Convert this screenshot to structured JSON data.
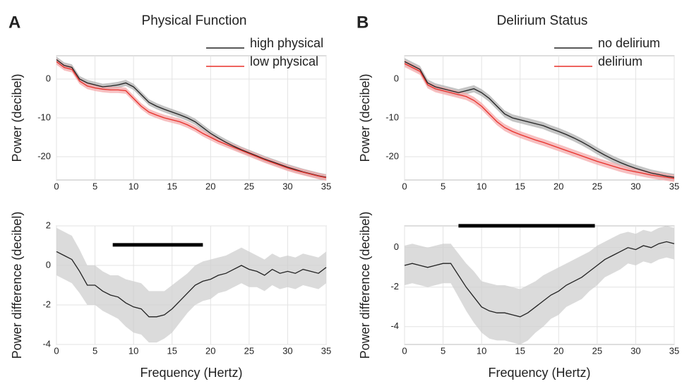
{
  "chart_data": [
    {
      "type": "line",
      "panel_label": "A",
      "title": "Physical Function",
      "ylabel": "Power (decibel)",
      "x": [
        0,
        1,
        2,
        3,
        4,
        5,
        6,
        7,
        8,
        9,
        10,
        11,
        12,
        13,
        14,
        15,
        16,
        17,
        18,
        19,
        20,
        21,
        22,
        23,
        24,
        25,
        26,
        27,
        28,
        29,
        30,
        31,
        32,
        33,
        34,
        35
      ],
      "series": [
        {
          "name": "high physical",
          "color": "#222222",
          "band_color": "#b0b0b0",
          "values": [
            5,
            3.5,
            3,
            0,
            -1,
            -1.5,
            -2,
            -1.8,
            -1.5,
            -1,
            -2,
            -4,
            -6,
            -7,
            -7.8,
            -8.5,
            -9.2,
            -10,
            -11,
            -12.5,
            -14,
            -15.2,
            -16.3,
            -17.3,
            -18.2,
            -19,
            -19.8,
            -20.6,
            -21.3,
            -22,
            -22.7,
            -23.3,
            -23.9,
            -24.4,
            -24.9,
            -25.3
          ],
          "errors": [
            0.8,
            0.8,
            0.8,
            0.8,
            0.8,
            0.8,
            0.8,
            0.8,
            0.8,
            0.8,
            0.8,
            0.8,
            0.8,
            0.8,
            0.8,
            0.8,
            0.8,
            0.8,
            0.8,
            0.8,
            0.8,
            0.8,
            0.8,
            0.8,
            0.8,
            0.8,
            0.8,
            0.8,
            0.8,
            0.8,
            0.8,
            0.8,
            0.8,
            0.8,
            0.8,
            0.8
          ]
        },
        {
          "name": "low physical",
          "color": "#e8302a",
          "band_color": "#f4a9ab",
          "values": [
            4.5,
            3,
            2.5,
            -0.5,
            -1.8,
            -2.3,
            -2.6,
            -2.8,
            -2.8,
            -3,
            -5,
            -7,
            -8.5,
            -9.3,
            -10,
            -10.5,
            -11,
            -11.8,
            -12.8,
            -14,
            -15,
            -16,
            -16.8,
            -17.6,
            -18.4,
            -19.2,
            -20,
            -20.8,
            -21.5,
            -22.2,
            -22.9,
            -23.5,
            -24,
            -24.5,
            -25,
            -25.4
          ],
          "errors": [
            0.8,
            0.8,
            0.8,
            0.8,
            0.8,
            0.8,
            0.8,
            0.8,
            0.8,
            0.8,
            0.8,
            0.8,
            0.8,
            0.8,
            0.8,
            0.8,
            0.8,
            0.8,
            0.8,
            0.8,
            0.8,
            0.8,
            0.8,
            0.8,
            0.8,
            0.8,
            0.8,
            0.8,
            0.8,
            0.8,
            0.8,
            0.8,
            0.8,
            0.8,
            0.8,
            0.8
          ]
        }
      ],
      "xlim": [
        0,
        35
      ],
      "xticks": [
        0,
        5,
        10,
        15,
        20,
        25,
        30,
        35
      ],
      "ylim": [
        -26,
        6
      ],
      "yticks": [
        -20,
        -10,
        0
      ],
      "grid": true,
      "legend": "upper right"
    },
    {
      "type": "line",
      "xlabel": "Frequency (Hertz)",
      "ylabel": "Power difference (decibel)",
      "x": [
        0,
        1,
        2,
        3,
        4,
        5,
        6,
        7,
        8,
        9,
        10,
        11,
        12,
        13,
        14,
        15,
        16,
        17,
        18,
        19,
        20,
        21,
        22,
        23,
        24,
        25,
        26,
        27,
        28,
        29,
        30,
        31,
        32,
        33,
        34,
        35
      ],
      "series": [
        {
          "color": "#222222",
          "band_color": "#cfcfcf",
          "values": [
            0.7,
            0.5,
            0.3,
            -0.3,
            -1,
            -1,
            -1.3,
            -1.5,
            -1.6,
            -1.9,
            -2.1,
            -2.2,
            -2.6,
            -2.6,
            -2.5,
            -2.2,
            -1.8,
            -1.4,
            -1,
            -0.8,
            -0.7,
            -0.5,
            -0.4,
            -0.2,
            0,
            -0.2,
            -0.3,
            -0.5,
            -0.2,
            -0.4,
            -0.3,
            -0.4,
            -0.2,
            -0.3,
            -0.4,
            -0.1
          ],
          "errors": [
            1.2,
            1.2,
            1.2,
            1.1,
            1,
            1,
            1,
            1,
            1.1,
            1.2,
            1.3,
            1.3,
            1.3,
            1.3,
            1.2,
            1.2,
            1.1,
            1,
            1,
            1,
            1,
            0.9,
            0.9,
            0.9,
            0.9,
            0.9,
            0.8,
            0.8,
            0.8,
            0.8,
            0.8,
            0.8,
            0.8,
            0.8,
            0.8,
            0.8
          ]
        }
      ],
      "significance": [
        7.3,
        19
      ],
      "xlim": [
        0,
        35
      ],
      "xticks": [
        0,
        5,
        10,
        15,
        20,
        25,
        30,
        35
      ],
      "ylim": [
        -4,
        2
      ],
      "yticks": [
        -4,
        -2,
        0,
        2
      ],
      "grid": true
    },
    {
      "type": "line",
      "panel_label": "B",
      "title": "Delirium  Status",
      "ylabel": "Power (decibel)",
      "x": [
        0,
        1,
        2,
        3,
        4,
        5,
        6,
        7,
        8,
        9,
        10,
        11,
        12,
        13,
        14,
        15,
        16,
        17,
        18,
        19,
        20,
        21,
        22,
        23,
        24,
        25,
        26,
        27,
        28,
        29,
        30,
        31,
        32,
        33,
        34,
        35
      ],
      "series": [
        {
          "name": "no delirium",
          "color": "#222222",
          "band_color": "#b0b0b0",
          "values": [
            4.5,
            3.5,
            2.5,
            -1,
            -2,
            -2.5,
            -3,
            -3.5,
            -3,
            -2.5,
            -3.5,
            -5,
            -7,
            -9,
            -10,
            -10.5,
            -11,
            -11.5,
            -12,
            -12.8,
            -13.5,
            -14.3,
            -15.2,
            -16.2,
            -17.3,
            -18.5,
            -19.6,
            -20.6,
            -21.5,
            -22.3,
            -23,
            -23.6,
            -24.2,
            -24.6,
            -25,
            -25.3
          ],
          "errors": [
            0.9,
            0.9,
            0.9,
            0.9,
            0.9,
            0.9,
            0.9,
            0.9,
            0.9,
            0.9,
            0.9,
            0.9,
            0.9,
            0.9,
            0.9,
            0.9,
            0.9,
            0.9,
            0.9,
            0.9,
            0.9,
            0.9,
            0.9,
            0.9,
            0.9,
            0.9,
            0.9,
            0.9,
            0.9,
            0.9,
            0.9,
            0.9,
            0.9,
            0.9,
            0.9,
            0.9
          ]
        },
        {
          "name": "delirium",
          "color": "#e8302a",
          "band_color": "#f4a9ab",
          "values": [
            4,
            3,
            2,
            -1.5,
            -2.5,
            -3,
            -3.5,
            -4,
            -4.5,
            -5.5,
            -7,
            -9,
            -11,
            -12.5,
            -13.5,
            -14.3,
            -15,
            -15.7,
            -16.3,
            -17,
            -17.7,
            -18.4,
            -19.1,
            -19.8,
            -20.5,
            -21.2,
            -21.8,
            -22.4,
            -23,
            -23.5,
            -23.9,
            -24.3,
            -24.7,
            -25,
            -25.3,
            -25.6
          ],
          "errors": [
            0.9,
            0.9,
            0.9,
            0.9,
            0.9,
            0.9,
            0.9,
            0.9,
            0.9,
            0.9,
            0.9,
            0.9,
            0.9,
            0.9,
            0.9,
            0.9,
            0.9,
            0.9,
            0.9,
            0.9,
            0.9,
            0.9,
            0.9,
            0.9,
            0.9,
            0.9,
            0.9,
            0.9,
            0.9,
            0.9,
            0.9,
            0.9,
            0.9,
            0.9,
            0.9,
            0.9
          ]
        }
      ],
      "xlim": [
        0,
        35
      ],
      "xticks": [
        0,
        5,
        10,
        15,
        20,
        25,
        30,
        35
      ],
      "ylim": [
        -26,
        6
      ],
      "yticks": [
        -20,
        -10,
        0
      ],
      "grid": true,
      "legend": "upper right"
    },
    {
      "type": "line",
      "xlabel": "Frequency (Hertz)",
      "ylabel": "Power difference (decibel)",
      "x": [
        0,
        1,
        2,
        3,
        4,
        5,
        6,
        7,
        8,
        9,
        10,
        11,
        12,
        13,
        14,
        15,
        16,
        17,
        18,
        19,
        20,
        21,
        22,
        23,
        24,
        25,
        26,
        27,
        28,
        29,
        30,
        31,
        32,
        33,
        34,
        35
      ],
      "series": [
        {
          "color": "#222222",
          "band_color": "#cfcfcf",
          "values": [
            -0.9,
            -0.8,
            -0.9,
            -1,
            -0.9,
            -0.8,
            -0.8,
            -1.4,
            -2,
            -2.5,
            -3,
            -3.2,
            -3.3,
            -3.3,
            -3.4,
            -3.5,
            -3.3,
            -3,
            -2.7,
            -2.4,
            -2.2,
            -1.9,
            -1.7,
            -1.5,
            -1.2,
            -0.9,
            -0.6,
            -0.4,
            -0.2,
            0,
            -0.1,
            0.1,
            0,
            0.2,
            0.3,
            0.2
          ],
          "errors": [
            1,
            1,
            1,
            1,
            1,
            1,
            1,
            1.1,
            1.2,
            1.3,
            1.3,
            1.4,
            1.4,
            1.4,
            1.4,
            1.4,
            1.4,
            1.3,
            1.3,
            1.2,
            1.2,
            1.1,
            1.1,
            1.1,
            1,
            1,
            0.9,
            0.9,
            0.9,
            0.8,
            0.8,
            0.8,
            0.8,
            0.8,
            0.8,
            0.8
          ]
        }
      ],
      "significance": [
        7,
        24.7
      ],
      "xlim": [
        0,
        35
      ],
      "xticks": [
        0,
        5,
        10,
        15,
        20,
        25,
        30,
        35
      ],
      "ylim": [
        -4.9,
        1.1
      ],
      "yticks": [
        -4,
        -2,
        0
      ],
      "grid": true
    }
  ]
}
